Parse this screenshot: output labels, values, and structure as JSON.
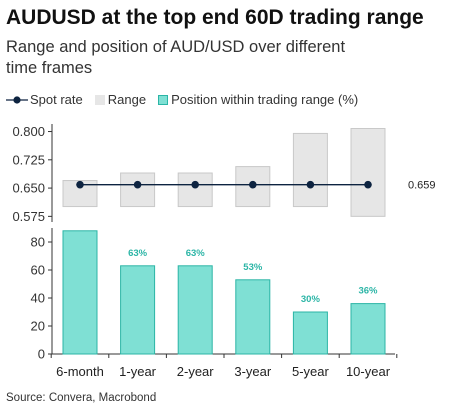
{
  "title": "AUDUSD at the top end 60D trading range",
  "subtitle": "Range and position of AUD/USD over different time frames",
  "legend": {
    "spot": "Spot rate",
    "range": "Range",
    "position": "Position within trading range (%)"
  },
  "source": "Source: Convera, Macrobond",
  "colors": {
    "range_fill": "#e6e6e6",
    "range_stroke": "#c8c8c8",
    "spot": "#0d2340",
    "bar_fill": "#7fe0d4",
    "bar_stroke": "#2bb5a6",
    "label": "#2bb5a6"
  },
  "chart_data": [
    {
      "type": "range-with-spot",
      "categories": [
        "6-month",
        "1-year",
        "2-year",
        "3-year",
        "5-year",
        "10-year"
      ],
      "range_low": [
        0.601,
        0.601,
        0.601,
        0.601,
        0.601,
        0.575
      ],
      "range_high": [
        0.67,
        0.69,
        0.69,
        0.707,
        0.795,
        0.808
      ],
      "spot": [
        0.659,
        0.659,
        0.659,
        0.659,
        0.659,
        0.659
      ],
      "spot_label": "0.659",
      "ylim": [
        0.56,
        0.82
      ],
      "yticks": [
        "0.575",
        "0.650",
        "0.725",
        "0.800"
      ]
    },
    {
      "type": "bar",
      "categories": [
        "6-month",
        "1-year",
        "2-year",
        "3-year",
        "5-year",
        "10-year"
      ],
      "values": [
        88,
        63,
        63,
        53,
        30,
        36
      ],
      "data_labels": [
        "",
        "63%",
        "63%",
        "53%",
        "30%",
        "36%"
      ],
      "ylim": [
        0,
        90
      ],
      "yticks": [
        "0",
        "20",
        "40",
        "60",
        "80"
      ]
    }
  ]
}
